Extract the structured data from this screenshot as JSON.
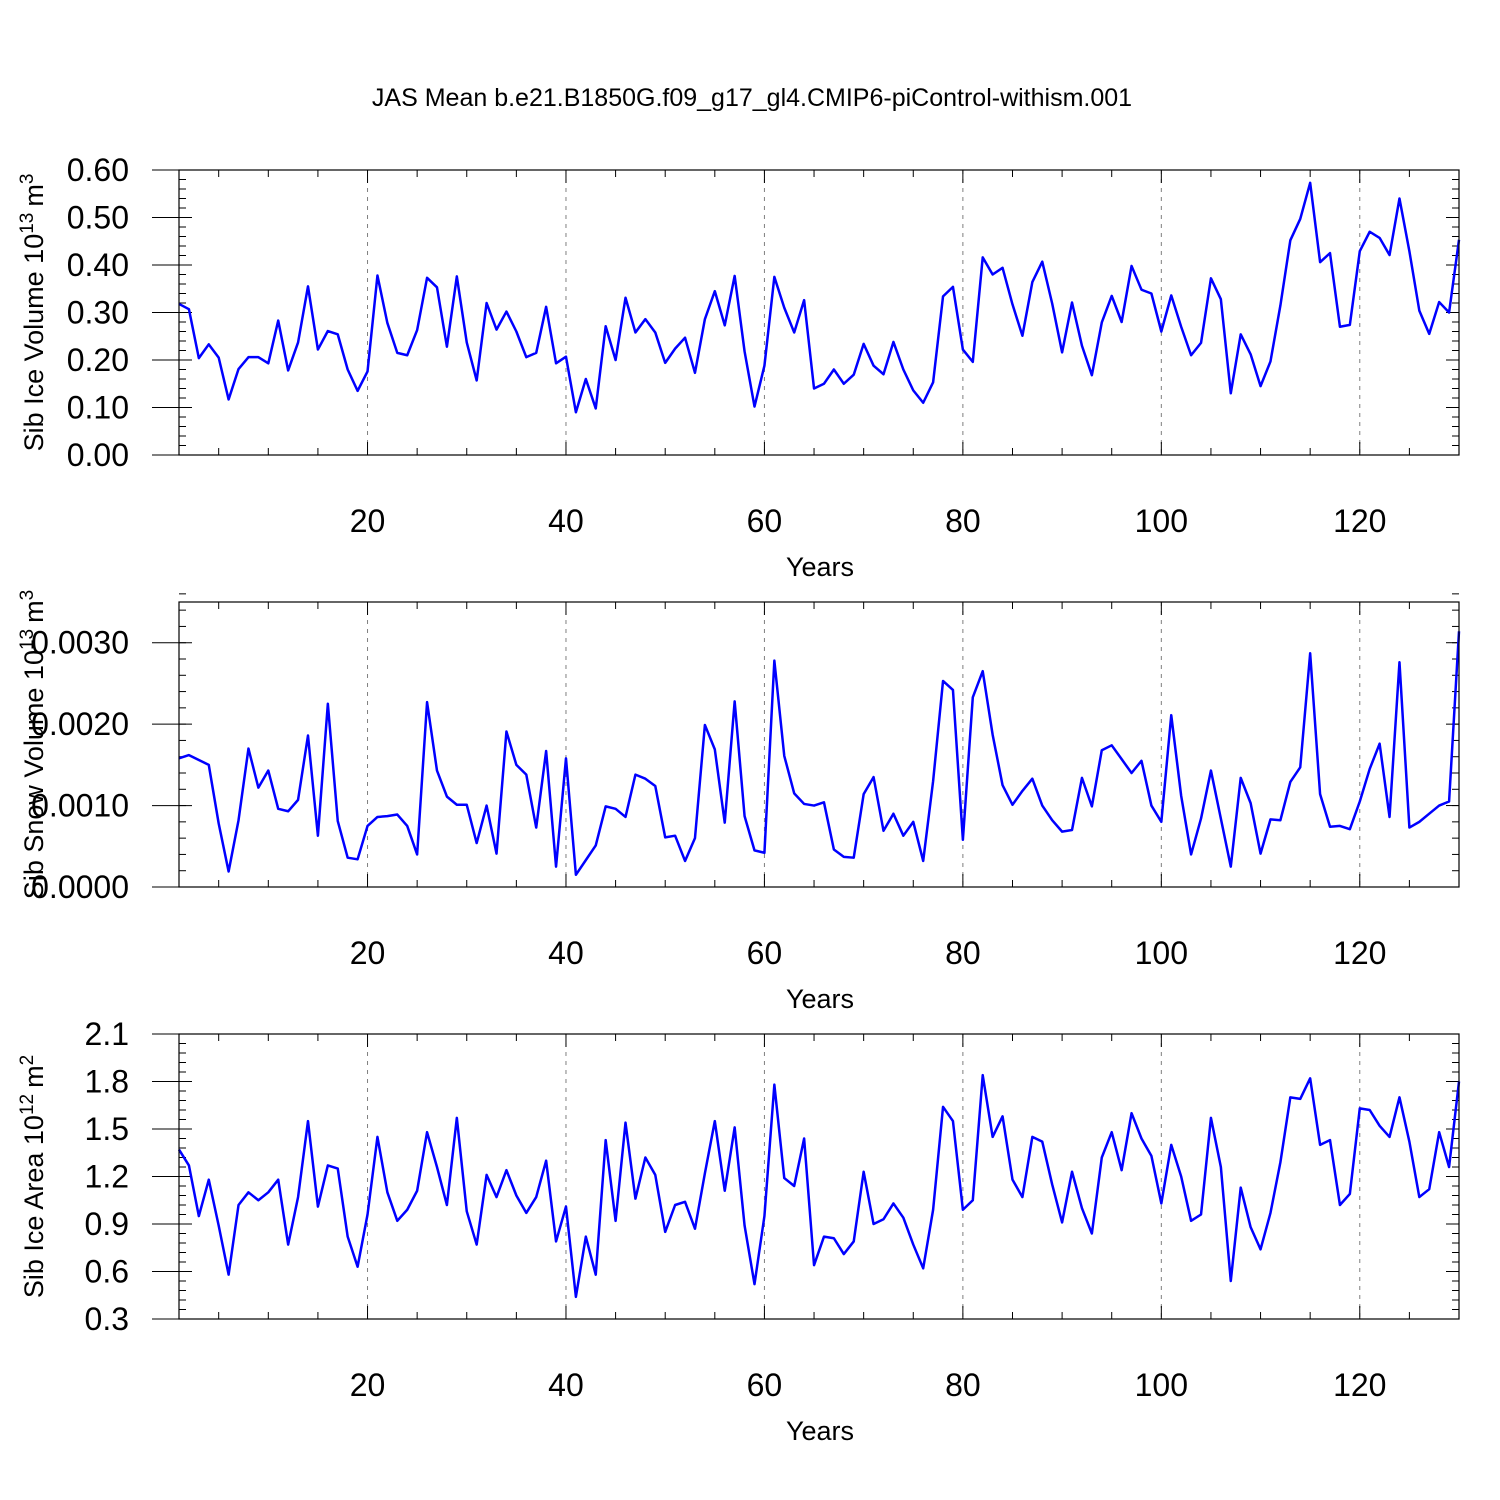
{
  "title": "JAS Mean b.e21.B1850G.f09_g17_gl4.CMIP6-piControl-withism.001",
  "colors": {
    "line": "#0000ff",
    "axis": "#000000",
    "grid": "#7f7f7f"
  },
  "chart_data": [
    {
      "type": "line",
      "name": "sib-ice-volume",
      "ylabel": {
        "text": "Sib Ice Volume 10",
        "exp": "13",
        "unit": "m",
        "unit_exp": "3"
      },
      "xlabel": "Years",
      "xlim": [
        1,
        130
      ],
      "ylim": [
        0.0,
        0.6
      ],
      "yticks": [
        0.0,
        0.1,
        0.2,
        0.3,
        0.4,
        0.5,
        0.6
      ],
      "ytick_labels": [
        "0.00",
        "0.10",
        "0.20",
        "0.30",
        "0.40",
        "0.50",
        "0.60"
      ],
      "yminor": 0.02,
      "xticks": [
        20,
        40,
        60,
        80,
        100,
        120
      ],
      "xtick_labels": [
        "20",
        "40",
        "60",
        "80",
        "100",
        "120"
      ],
      "values": [
        0.318,
        0.307,
        0.204,
        0.233,
        0.205,
        0.117,
        0.181,
        0.206,
        0.206,
        0.193,
        0.283,
        0.178,
        0.237,
        0.355,
        0.222,
        0.261,
        0.254,
        0.18,
        0.135,
        0.176,
        0.378,
        0.278,
        0.215,
        0.21,
        0.263,
        0.373,
        0.353,
        0.228,
        0.376,
        0.237,
        0.157,
        0.32,
        0.264,
        0.302,
        0.26,
        0.206,
        0.215,
        0.312,
        0.193,
        0.207,
        0.09,
        0.16,
        0.098,
        0.271,
        0.2,
        0.331,
        0.258,
        0.286,
        0.258,
        0.194,
        0.224,
        0.247,
        0.173,
        0.286,
        0.345,
        0.273,
        0.377,
        0.218,
        0.102,
        0.188,
        0.375,
        0.31,
        0.258,
        0.326,
        0.14,
        0.15,
        0.18,
        0.15,
        0.169,
        0.234,
        0.188,
        0.17,
        0.238,
        0.18,
        0.136,
        0.11,
        0.153,
        0.334,
        0.354,
        0.222,
        0.196,
        0.416,
        0.38,
        0.394,
        0.317,
        0.251,
        0.364,
        0.407,
        0.319,
        0.216,
        0.321,
        0.23,
        0.168,
        0.279,
        0.335,
        0.28,
        0.398,
        0.348,
        0.34,
        0.26,
        0.336,
        0.27,
        0.21,
        0.236,
        0.372,
        0.328,
        0.13,
        0.254,
        0.212,
        0.145,
        0.197,
        0.315,
        0.452,
        0.497,
        0.573,
        0.406,
        0.425,
        0.27,
        0.274,
        0.429,
        0.47,
        0.457,
        0.421,
        0.54,
        0.429,
        0.304,
        0.255,
        0.322,
        0.3,
        0.453
      ]
    },
    {
      "type": "line",
      "name": "sib-snow-volume",
      "ylabel": {
        "text": "Sib Snow Volume 10",
        "exp": "13",
        "unit": "m",
        "unit_exp": "3"
      },
      "xlabel": "Years",
      "xlim": [
        1,
        130
      ],
      "ylim": [
        0.0,
        0.0035
      ],
      "yticks": [
        0.0,
        0.001,
        0.002,
        0.003
      ],
      "ytick_labels": [
        "0.0000",
        "0.0010",
        "0.0020",
        "0.0030"
      ],
      "yminor": 0.0002,
      "xticks": [
        20,
        40,
        60,
        80,
        100,
        120
      ],
      "xtick_labels": [
        "20",
        "40",
        "60",
        "80",
        "100",
        "120"
      ],
      "values": [
        0.00158,
        0.00162,
        0.00156,
        0.0015,
        0.00078,
        0.00019,
        0.00082,
        0.0017,
        0.00122,
        0.00143,
        0.00096,
        0.00093,
        0.00107,
        0.00186,
        0.00063,
        0.00225,
        0.00081,
        0.00036,
        0.00034,
        0.00075,
        0.00086,
        0.00087,
        0.00089,
        0.00075,
        0.0004,
        0.00227,
        0.00143,
        0.00111,
        0.00101,
        0.00101,
        0.00054,
        0.001,
        0.00041,
        0.00191,
        0.0015,
        0.00138,
        0.00073,
        0.00167,
        0.00025,
        0.00158,
        0.00015,
        0.00033,
        0.00051,
        0.00099,
        0.00096,
        0.00086,
        0.00138,
        0.00133,
        0.00124,
        0.00061,
        0.00063,
        0.00032,
        0.0006,
        0.00199,
        0.00169,
        0.00079,
        0.00228,
        0.00087,
        0.00045,
        0.00042,
        0.00278,
        0.00161,
        0.00115,
        0.00102,
        0.001,
        0.00104,
        0.00046,
        0.00037,
        0.00036,
        0.00114,
        0.00135,
        0.00069,
        0.0009,
        0.00063,
        0.0008,
        0.00032,
        0.0013,
        0.00253,
        0.00242,
        0.00058,
        0.00233,
        0.00265,
        0.00187,
        0.00125,
        0.00101,
        0.00118,
        0.00133,
        0.001,
        0.00082,
        0.00068,
        0.0007,
        0.00134,
        0.00099,
        0.00168,
        0.00174,
        0.00157,
        0.0014,
        0.00155,
        0.001,
        0.0008,
        0.00211,
        0.00112,
        0.0004,
        0.00084,
        0.00143,
        0.00084,
        0.00025,
        0.00134,
        0.00103,
        0.00041,
        0.00083,
        0.00082,
        0.00129,
        0.00147,
        0.00287,
        0.00114,
        0.00074,
        0.00075,
        0.00071,
        0.00105,
        0.00145,
        0.00176,
        0.00086,
        0.00276,
        0.00073,
        0.0008,
        0.0009,
        0.001,
        0.00105,
        0.00314
      ]
    },
    {
      "type": "line",
      "name": "sib-ice-area",
      "ylabel": {
        "text": "Sib Ice Area 10",
        "exp": "12",
        "unit": "m",
        "unit_exp": "2"
      },
      "xlabel": "Years",
      "xlim": [
        1,
        130
      ],
      "ylim": [
        0.3,
        2.1
      ],
      "yticks": [
        0.3,
        0.6,
        0.9,
        1.2,
        1.5,
        1.8,
        2.1
      ],
      "ytick_labels": [
        "0.3",
        "0.6",
        "0.9",
        "1.2",
        "1.5",
        "1.8",
        "2.1"
      ],
      "yminor": 0.06,
      "xticks": [
        20,
        40,
        60,
        80,
        100,
        120
      ],
      "xtick_labels": [
        "20",
        "40",
        "60",
        "80",
        "100",
        "120"
      ],
      "values": [
        1.37,
        1.27,
        0.95,
        1.18,
        0.89,
        0.58,
        1.02,
        1.1,
        1.05,
        1.1,
        1.18,
        0.77,
        1.07,
        1.55,
        1.01,
        1.27,
        1.25,
        0.82,
        0.63,
        0.96,
        1.45,
        1.1,
        0.92,
        0.99,
        1.11,
        1.48,
        1.26,
        1.02,
        1.57,
        0.98,
        0.77,
        1.21,
        1.07,
        1.24,
        1.08,
        0.97,
        1.07,
        1.3,
        0.79,
        1.01,
        0.44,
        0.82,
        0.58,
        1.43,
        0.92,
        1.54,
        1.06,
        1.32,
        1.21,
        0.85,
        1.02,
        1.04,
        0.87,
        1.22,
        1.55,
        1.11,
        1.51,
        0.89,
        0.52,
        0.95,
        1.78,
        1.19,
        1.14,
        1.44,
        0.64,
        0.82,
        0.81,
        0.71,
        0.79,
        1.23,
        0.9,
        0.93,
        1.03,
        0.94,
        0.77,
        0.62,
        0.99,
        1.64,
        1.55,
        0.99,
        1.05,
        1.84,
        1.45,
        1.58,
        1.18,
        1.07,
        1.45,
        1.42,
        1.15,
        0.91,
        1.23,
        1.0,
        0.84,
        1.32,
        1.48,
        1.24,
        1.6,
        1.44,
        1.33,
        1.03,
        1.4,
        1.2,
        0.92,
        0.96,
        1.57,
        1.26,
        0.54,
        1.13,
        0.88,
        0.74,
        0.97,
        1.29,
        1.7,
        1.69,
        1.82,
        1.4,
        1.43,
        1.02,
        1.09,
        1.63,
        1.62,
        1.52,
        1.45,
        1.7,
        1.42,
        1.07,
        1.12,
        1.48,
        1.26,
        1.8
      ]
    }
  ]
}
